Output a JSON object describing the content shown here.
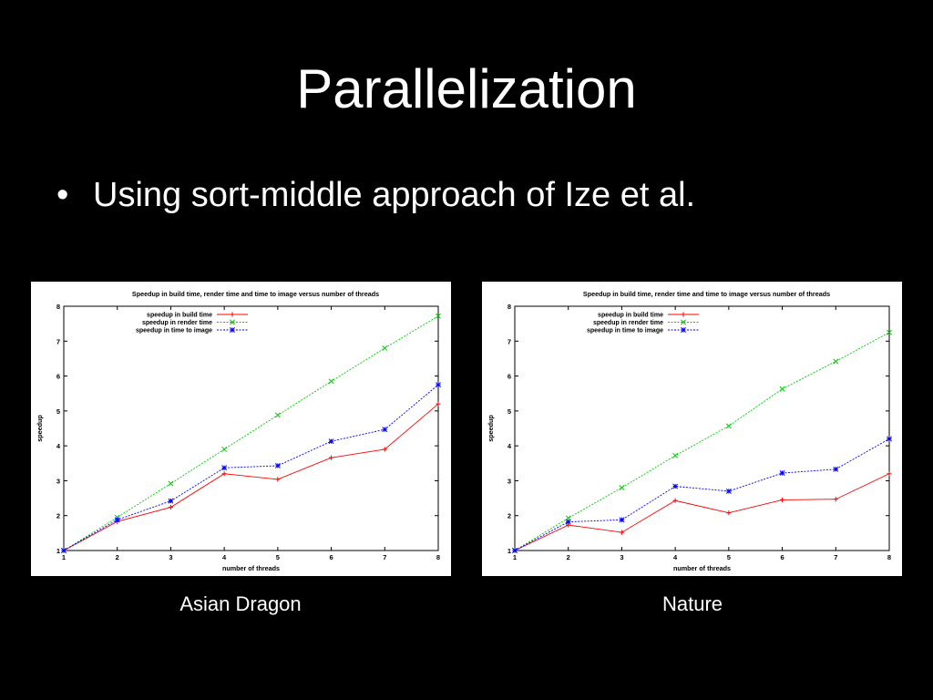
{
  "slide": {
    "title": "Parallelization",
    "bullet_symbol": "•",
    "bullet": "Using sort-middle approach of Ize et al."
  },
  "colors": {
    "background": "#000000",
    "text": "#ffffff",
    "build": "#ff0000",
    "render": "#00cc00",
    "image": "#0000ff"
  },
  "chart_data": [
    {
      "type": "line",
      "caption": "Asian Dragon",
      "title": "Speedup in build time, render time and time to image versus number of threads",
      "xlabel": "number of threads",
      "ylabel": "speedup",
      "xlim": [
        1,
        8
      ],
      "ylim": [
        1,
        8
      ],
      "x": [
        1,
        2,
        3,
        4,
        5,
        6,
        7,
        8
      ],
      "x_ticks": [
        "1",
        "2",
        "3",
        "4",
        "5",
        "6",
        "7",
        "8"
      ],
      "y_ticks": [
        "1",
        "2",
        "3",
        "4",
        "5",
        "6",
        "7",
        "8"
      ],
      "legend_position": "top-left",
      "grid": false,
      "series": [
        {
          "name": "speedup in build time",
          "color": "#ff0000",
          "marker": "+",
          "values": [
            1,
            1.83,
            2.24,
            3.2,
            3.04,
            3.66,
            3.9,
            5.2
          ]
        },
        {
          "name": "speedup in render time",
          "color": "#00cc00",
          "marker": "x",
          "values": [
            1,
            1.95,
            2.92,
            3.9,
            4.88,
            5.85,
            6.8,
            7.72
          ]
        },
        {
          "name": "speedup in time to image",
          "color": "#0000ff",
          "marker": "*",
          "values": [
            1,
            1.88,
            2.42,
            3.37,
            3.43,
            4.13,
            4.47,
            5.75
          ]
        }
      ]
    },
    {
      "type": "line",
      "caption": "Nature",
      "title": "Speedup in build time, render time and time to image versus number of threads",
      "xlabel": "number of threads",
      "ylabel": "speedup",
      "xlim": [
        1,
        8
      ],
      "ylim": [
        1,
        8
      ],
      "x": [
        1,
        2,
        3,
        4,
        5,
        6,
        7,
        8
      ],
      "x_ticks": [
        "1",
        "2",
        "3",
        "4",
        "5",
        "6",
        "7",
        "8"
      ],
      "y_ticks": [
        "1",
        "2",
        "3",
        "4",
        "5",
        "6",
        "7",
        "8"
      ],
      "legend_position": "top-left",
      "grid": false,
      "series": [
        {
          "name": "speedup in build time",
          "color": "#ff0000",
          "marker": "+",
          "values": [
            1,
            1.73,
            1.52,
            2.43,
            2.08,
            2.45,
            2.47,
            3.2
          ]
        },
        {
          "name": "speedup in render time",
          "color": "#00cc00",
          "marker": "x",
          "values": [
            1,
            1.93,
            2.8,
            3.72,
            4.57,
            5.63,
            6.42,
            7.25
          ]
        },
        {
          "name": "speedup in time to image",
          "color": "#0000ff",
          "marker": "*",
          "values": [
            1,
            1.82,
            1.88,
            2.84,
            2.7,
            3.22,
            3.33,
            4.2
          ]
        }
      ]
    }
  ]
}
